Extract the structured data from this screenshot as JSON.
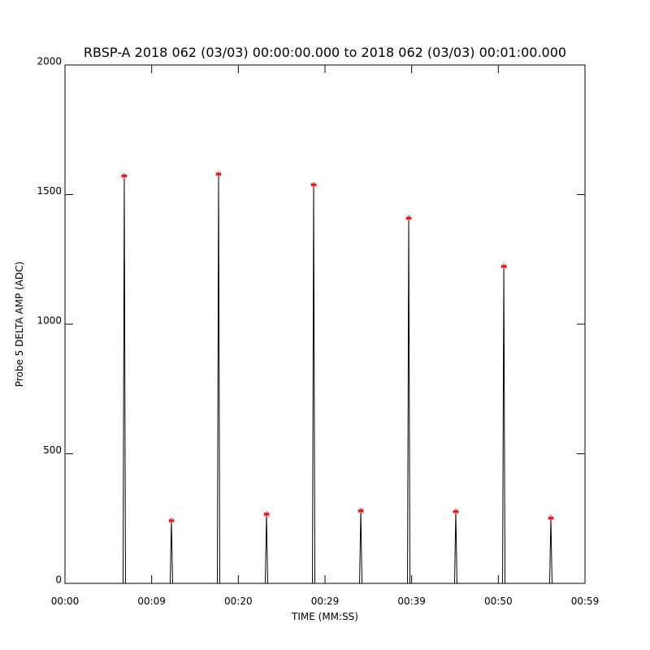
{
  "chart_data": {
    "type": "line",
    "title": "RBSP-A 2018 062 (03/03) 00:00:00.000 to 2018 062 (03/03) 00:01:00.000",
    "xlabel": "TIME (MM:SS)",
    "ylabel": "Probe 5 DELTA AMP (ADC)",
    "xlim": [
      0,
      60
    ],
    "xticks": [
      {
        "value": 0,
        "label": "00:00"
      },
      {
        "value": 10,
        "label": "00:09"
      },
      {
        "value": 20,
        "label": "00:20"
      },
      {
        "value": 30,
        "label": "00:29"
      },
      {
        "value": 40,
        "label": "00:39"
      },
      {
        "value": 50,
        "label": "00:50"
      },
      {
        "value": 60,
        "label": "00:59"
      }
    ],
    "ylim": [
      0,
      2000
    ],
    "yticks": [
      0,
      500,
      1000,
      1500,
      2000
    ],
    "series": [
      {
        "type": "line",
        "color": "#000000",
        "x": [
          6.7,
          6.84,
          6.98,
          null,
          12.14,
          12.28,
          12.42,
          null,
          17.58,
          17.72,
          17.86,
          null,
          23.11,
          23.25,
          23.39,
          null,
          28.55,
          28.69,
          28.83,
          null,
          33.99,
          34.13,
          34.27,
          null,
          39.52,
          39.66,
          39.8,
          null,
          44.95,
          45.09,
          45.23,
          null,
          50.49,
          50.63,
          50.77,
          null,
          55.92,
          56.06,
          56.2
        ],
        "values": [
          0,
          1572,
          0,
          null,
          0,
          242,
          0,
          null,
          0,
          1579,
          0,
          null,
          0,
          267,
          0,
          null,
          0,
          1538,
          0,
          null,
          0,
          280,
          0,
          null,
          0,
          1409,
          0,
          null,
          0,
          277,
          0,
          null,
          0,
          1223,
          0,
          null,
          0,
          252,
          0
        ]
      },
      {
        "type": "scatter",
        "color": "#ff0000",
        "marker": "asterisk",
        "x": [
          6.84,
          12.28,
          17.72,
          23.25,
          28.69,
          34.13,
          39.66,
          45.09,
          50.63,
          56.06
        ],
        "values": [
          1572,
          242,
          1579,
          267,
          1538,
          280,
          1409,
          277,
          1223,
          252
        ]
      }
    ]
  }
}
